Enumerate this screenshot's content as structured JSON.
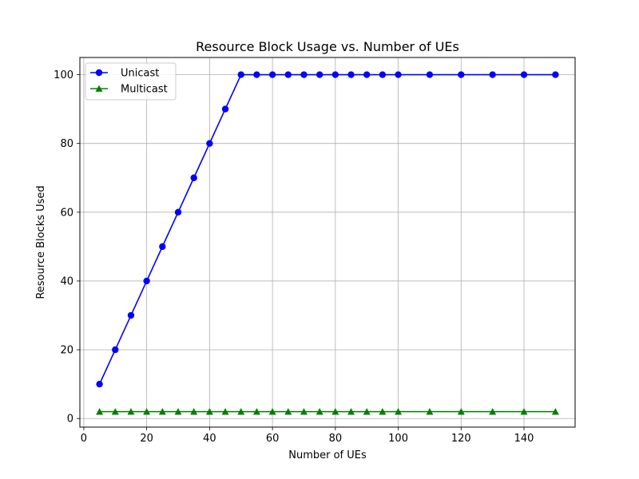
{
  "chart_data": {
    "type": "line",
    "title": "Resource Block Usage vs. Number of UEs",
    "xlabel": "Number of UEs",
    "ylabel": "Resource Blocks Used",
    "xlim": [
      -1.25,
      156.25
    ],
    "ylim": [
      -2.5,
      105
    ],
    "xticks": [
      0,
      20,
      40,
      60,
      80,
      100,
      120,
      140
    ],
    "yticks": [
      0,
      20,
      40,
      60,
      80,
      100
    ],
    "grid": true,
    "legend_position": "upper-left",
    "x": [
      5,
      10,
      15,
      20,
      25,
      30,
      35,
      40,
      45,
      50,
      55,
      60,
      65,
      70,
      75,
      80,
      85,
      90,
      95,
      100,
      110,
      120,
      130,
      140,
      150
    ],
    "series": [
      {
        "name": "Unicast",
        "color": "#0000ff",
        "marker": "circle",
        "values": [
          10,
          20,
          30,
          40,
          50,
          60,
          70,
          80,
          90,
          100,
          100,
          100,
          100,
          100,
          100,
          100,
          100,
          100,
          100,
          100,
          100,
          100,
          100,
          100,
          100
        ]
      },
      {
        "name": "Multicast",
        "color": "#008000",
        "marker": "triangle",
        "values": [
          2,
          2,
          2,
          2,
          2,
          2,
          2,
          2,
          2,
          2,
          2,
          2,
          2,
          2,
          2,
          2,
          2,
          2,
          2,
          2,
          2,
          2,
          2,
          2,
          2
        ]
      }
    ]
  }
}
